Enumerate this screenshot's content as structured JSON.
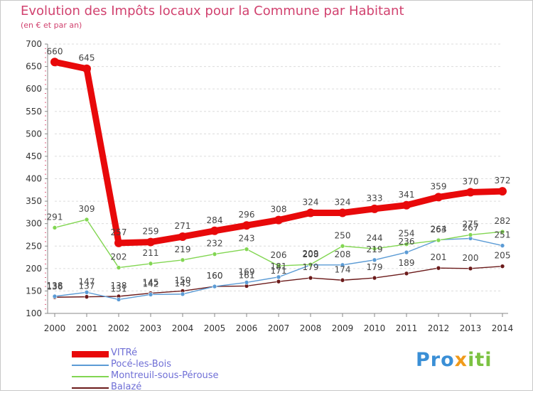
{
  "chart_data": {
    "type": "line",
    "title": "Evolution des Impôts locaux pour la Commune par Habitant",
    "subtitle": "(en € et par an)",
    "categories": [
      "2000",
      "2001",
      "2002",
      "2003",
      "2004",
      "2005",
      "2006",
      "2007",
      "2008",
      "2009",
      "2010",
      "2011",
      "2012",
      "2013",
      "2014"
    ],
    "ylim": [
      100,
      700
    ],
    "yticks": [
      100,
      150,
      200,
      250,
      300,
      350,
      400,
      450,
      500,
      550,
      600,
      650,
      700
    ],
    "grid": "horizontal dashed",
    "legend_position": "bottom-left",
    "series": [
      {
        "name": "VITRé",
        "color": "#e8090a",
        "values": [
          660,
          645,
          257,
          259,
          271,
          284,
          296,
          308,
          324,
          324,
          333,
          341,
          359,
          370,
          372
        ]
      },
      {
        "name": "Pocé-les-Bois",
        "color": "#5b9bd5",
        "values": [
          138,
          147,
          131,
          142,
          143,
          160,
          169,
          181,
          208,
          208,
          219,
          236,
          264,
          267,
          251
        ]
      },
      {
        "name": "Montreuil-sous-Pérouse",
        "color": "#82d652",
        "values": [
          291,
          309,
          202,
          211,
          219,
          232,
          243,
          206,
          209,
          250,
          244,
          254,
          263,
          275,
          282
        ]
      },
      {
        "name": "Balazé",
        "color": "#6b1a1a",
        "values": [
          136,
          137,
          138,
          145,
          150,
          160,
          161,
          171,
          179,
          174,
          179,
          189,
          201,
          200,
          205
        ]
      }
    ]
  },
  "logo": {
    "p1": "Pro",
    "p2": "x",
    "p3": "iti"
  }
}
